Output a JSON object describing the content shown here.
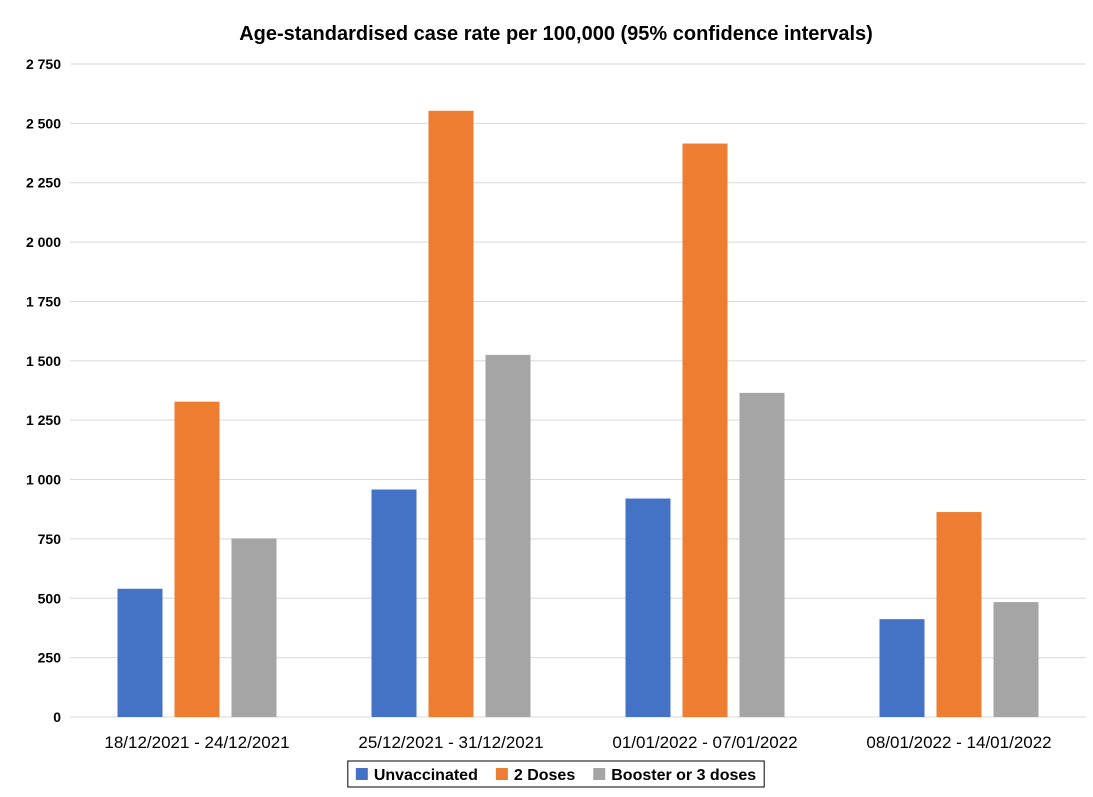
{
  "chart_data": {
    "type": "bar",
    "title": "Age-standardised case rate per 100,000 (95% confidence intervals)",
    "categories": [
      "18/12/2021 - 24/12/2021",
      "25/12/2021 - 31/12/2021",
      "01/01/2022 - 07/01/2022",
      "08/01/2022 - 14/01/2022"
    ],
    "series": [
      {
        "name": "Unvaccinated",
        "color": "#4472c4",
        "values": [
          540,
          958,
          920,
          412
        ]
      },
      {
        "name": "2 Doses",
        "color": "#ed7d31",
        "values": [
          1328,
          2553,
          2415,
          863
        ]
      },
      {
        "name": "Booster or 3 doses",
        "color": "#a5a5a5",
        "values": [
          752,
          1525,
          1365,
          484
        ]
      }
    ],
    "xlabel": "",
    "ylabel": "",
    "ylim": [
      0,
      2750
    ],
    "yticks": [
      0,
      250,
      500,
      750,
      1000,
      1250,
      1500,
      1750,
      2000,
      2250,
      2500,
      2750
    ],
    "ytick_labels": [
      "0",
      "250",
      "500",
      "750",
      "1 000",
      "1 250",
      "1 500",
      "1 750",
      "2 000",
      "2 250",
      "2 500",
      "2 750"
    ],
    "grid": true,
    "legend_position": "bottom"
  }
}
